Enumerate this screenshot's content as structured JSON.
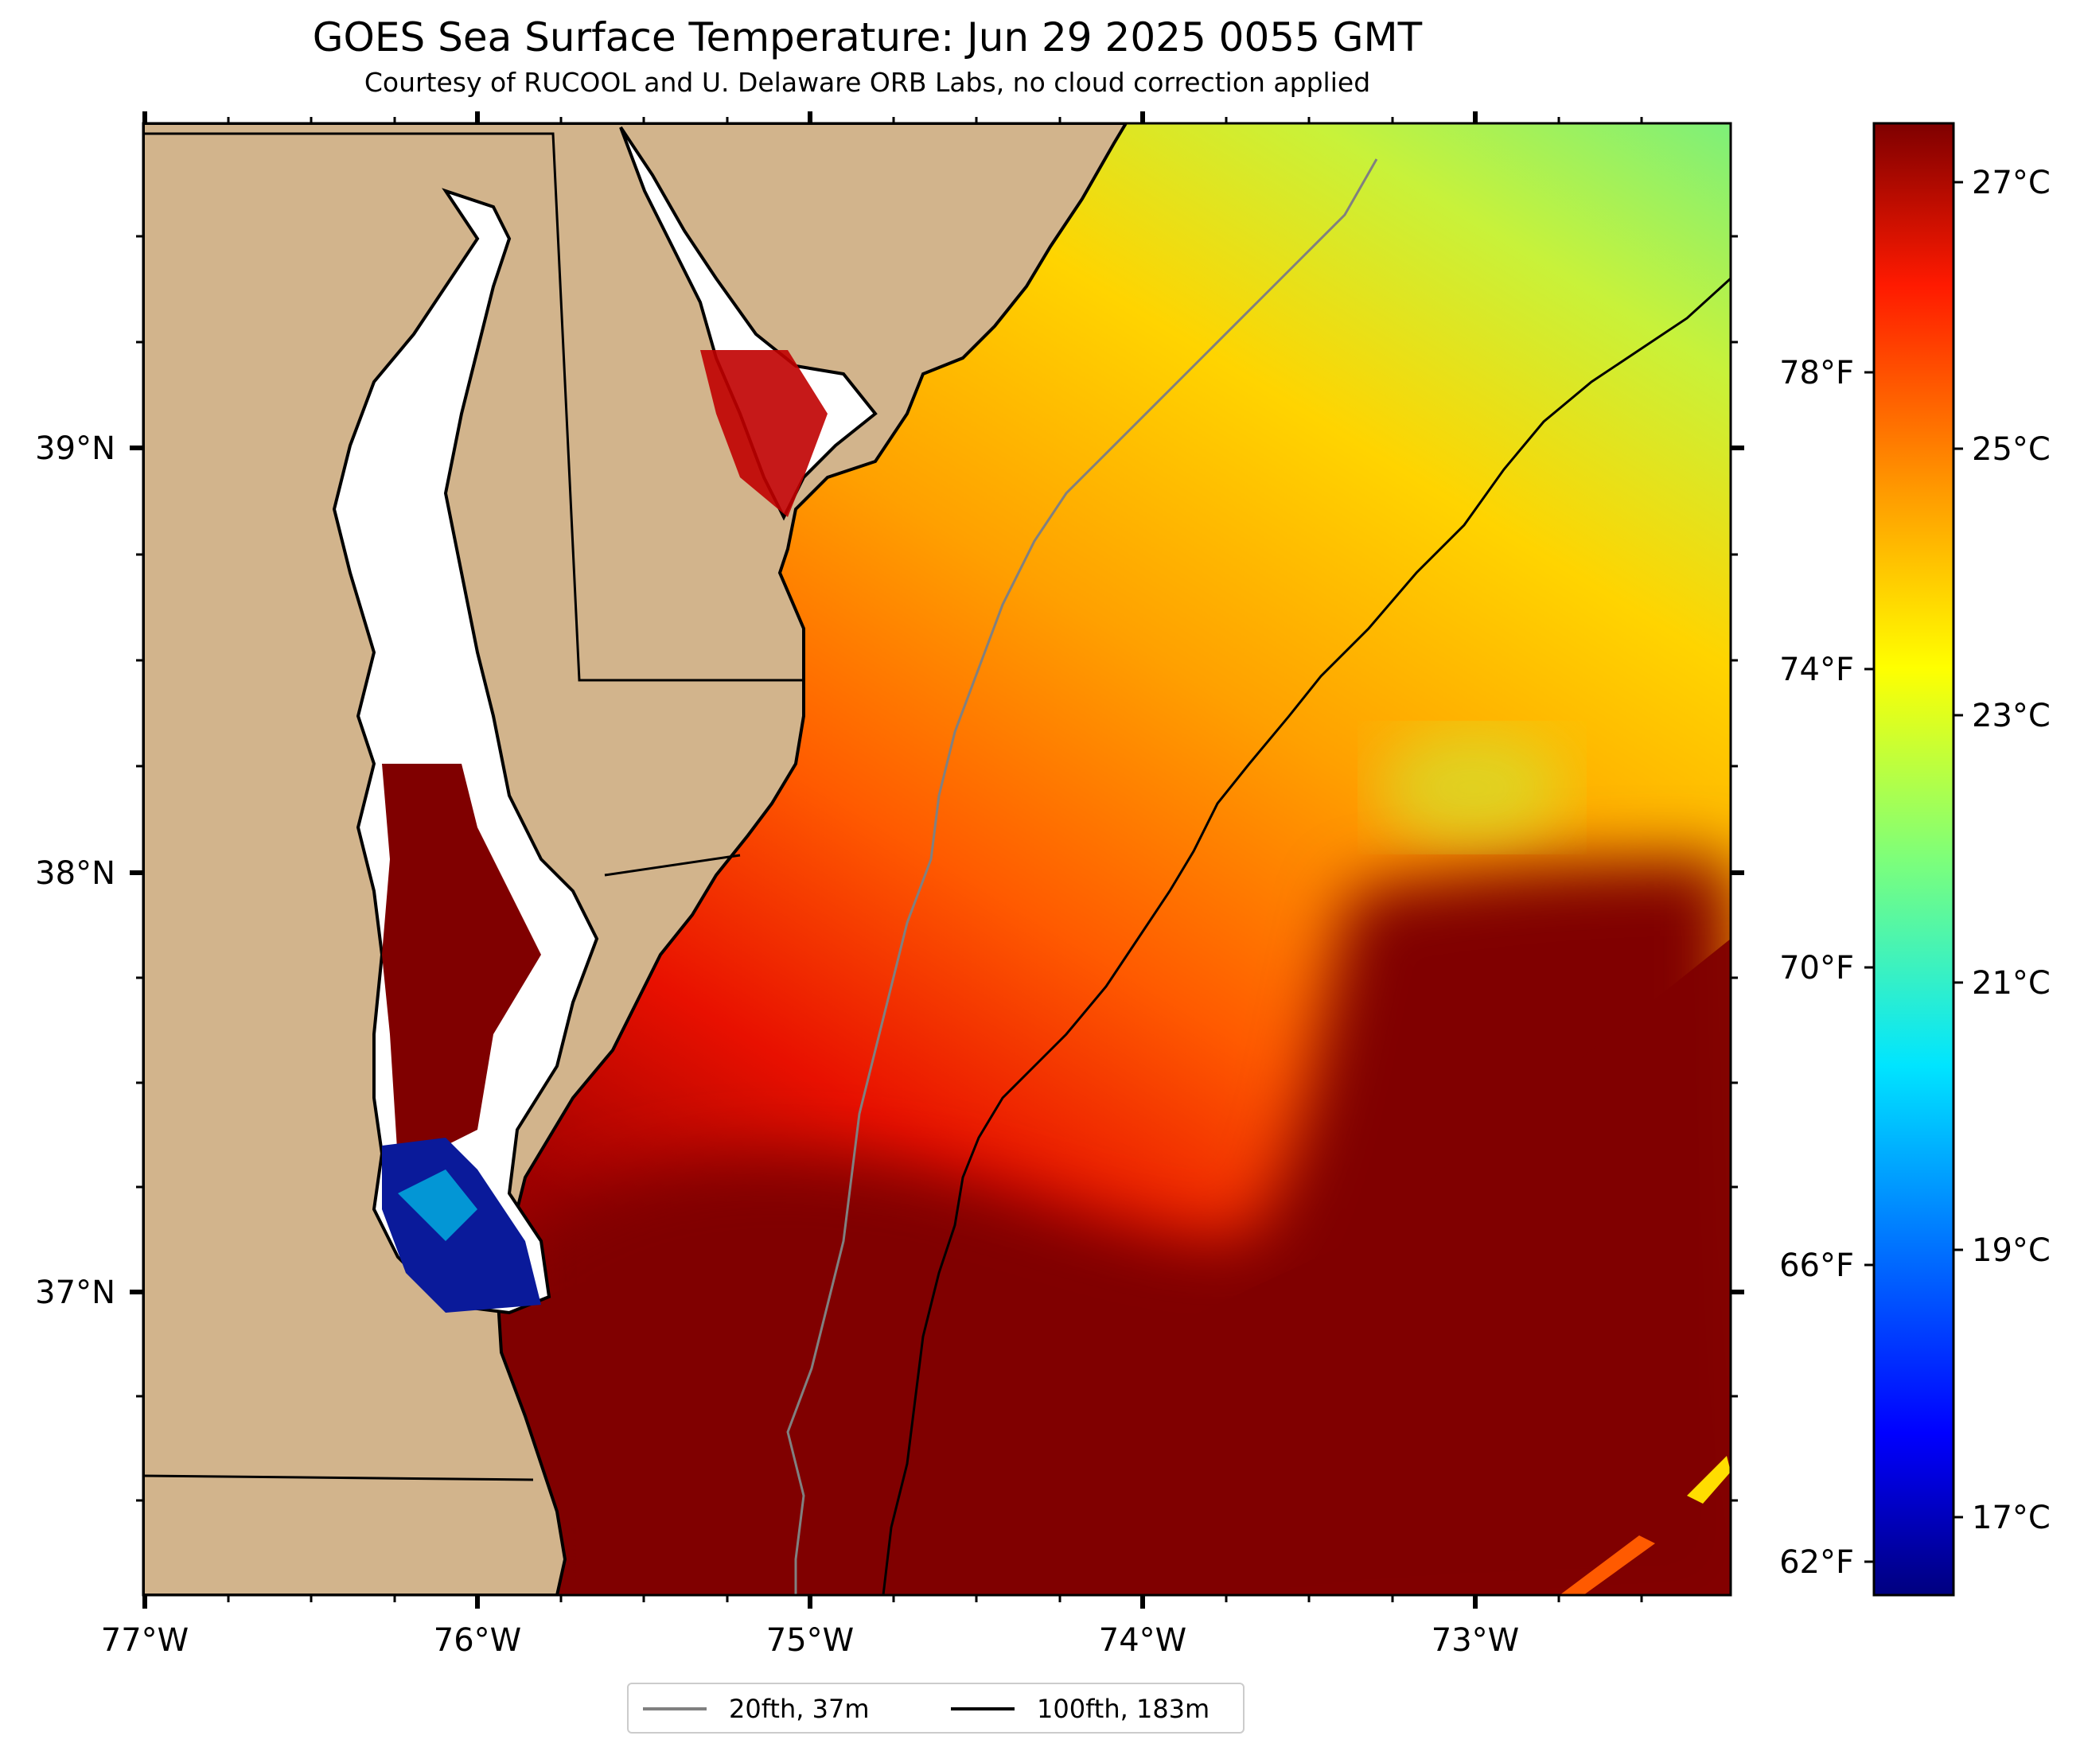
{
  "header": {
    "title": "GOES Sea Surface Temperature: Jun 29 2025 0055 GMT",
    "subtitle": "Courtesy of RUCOOL and U. Delaware ORB Labs, no cloud correction applied"
  },
  "map": {
    "lon_labels": [
      "77°W",
      "76°W",
      "75°W",
      "74°W",
      "73°W"
    ],
    "lat_labels": [
      "39°N",
      "38°N",
      "37°N"
    ],
    "colors": {
      "land": "#d2b48c",
      "no_data": "#ffffff",
      "warm_max": "#800000"
    }
  },
  "colorbar": {
    "celsius_labels": [
      "27°C",
      "25°C",
      "23°C",
      "21°C",
      "19°C",
      "17°C"
    ],
    "fahrenheit_labels": [
      "78°F",
      "74°F",
      "70°F",
      "66°F",
      "62°F"
    ],
    "colormap": "jet"
  },
  "legend": {
    "items": [
      {
        "label": "20fth, 37m",
        "color": "#808080"
      },
      {
        "label": "100fth, 183m",
        "color": "#000000"
      }
    ]
  }
}
